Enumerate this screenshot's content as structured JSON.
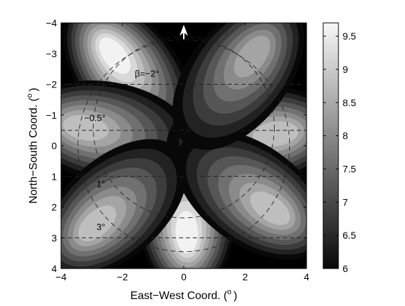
{
  "chart_data": {
    "type": "heatmap",
    "title": "",
    "xlabel": "East−West Coord. (°)",
    "xlabel_text": "East−West Coord. (",
    "xlabel_unit": "o",
    "xlabel_close": ")",
    "ylabel": "North−South Coord. (°)",
    "ylabel_text": "North−South Coord. (",
    "ylabel_unit": "o",
    "ylabel_close": ")",
    "xlim": [
      -4,
      4
    ],
    "ylim": [
      4,
      -4
    ],
    "y_inverted": true,
    "x_ticks": [
      -4,
      -2,
      0,
      2,
      4
    ],
    "x_tick_labels": [
      "−4",
      "−2",
      "0",
      "2",
      "4"
    ],
    "y_ticks": [
      -4,
      -3,
      -2,
      -1,
      0,
      1,
      2,
      3,
      4
    ],
    "y_tick_labels": [
      "−4",
      "−3",
      "−2",
      "−1",
      "0",
      "1",
      "2",
      "3",
      "4"
    ],
    "colorbar": {
      "range": [
        6,
        9.7
      ],
      "ticks": [
        6,
        6.5,
        7,
        7.5,
        8,
        8.5,
        9,
        9.5
      ],
      "tick_labels": [
        "6",
        "6.5",
        "7",
        "7.5",
        "8",
        "8.5",
        "9",
        "9.5"
      ],
      "colormap": "gray"
    },
    "contour_levels": [
      6,
      6.4,
      6.8,
      7.2,
      7.6,
      8.0,
      8.4,
      8.8,
      9.2,
      9.6
    ],
    "lobes": [
      {
        "center_x": -2.3,
        "center_y": -3.0,
        "peak": 9.7
      },
      {
        "center_x": 0.1,
        "center_y": 2.9,
        "peak": 9.7
      },
      {
        "center_x": -3.3,
        "center_y": -0.6,
        "peak": 8.8
      },
      {
        "center_x": 3.1,
        "center_y": -0.4,
        "peak": 8.8
      },
      {
        "center_x": -2.9,
        "center_y": 2.6,
        "peak": 8.8
      },
      {
        "center_x": 2.9,
        "center_y": 2.1,
        "peak": 8.8
      },
      {
        "center_x": 2.3,
        "center_y": -3.0,
        "peak": 8.4
      }
    ],
    "dashed_horizontal_lines_y": [
      -2,
      -0.5,
      1,
      3
    ],
    "dashed_circles": [
      {
        "center_x": 0,
        "center_y": 0,
        "radius": 3.45
      },
      {
        "center_x": 0,
        "center_y": -0.6,
        "radius": 2.95
      }
    ],
    "annotations": [
      {
        "text": "β=−2°",
        "x": -1.2,
        "y": -2.25
      },
      {
        "text": "−0.5°",
        "x": -2.9,
        "y": -0.8
      },
      {
        "text": "1°",
        "x": -2.7,
        "y": 1.35
      },
      {
        "text": "3°",
        "x": -2.7,
        "y": 2.75
      }
    ],
    "north_arrow": {
      "x": 0,
      "y": -3.85,
      "color": "#ffffff"
    },
    "grid": false,
    "legend": "colorbar-right"
  }
}
